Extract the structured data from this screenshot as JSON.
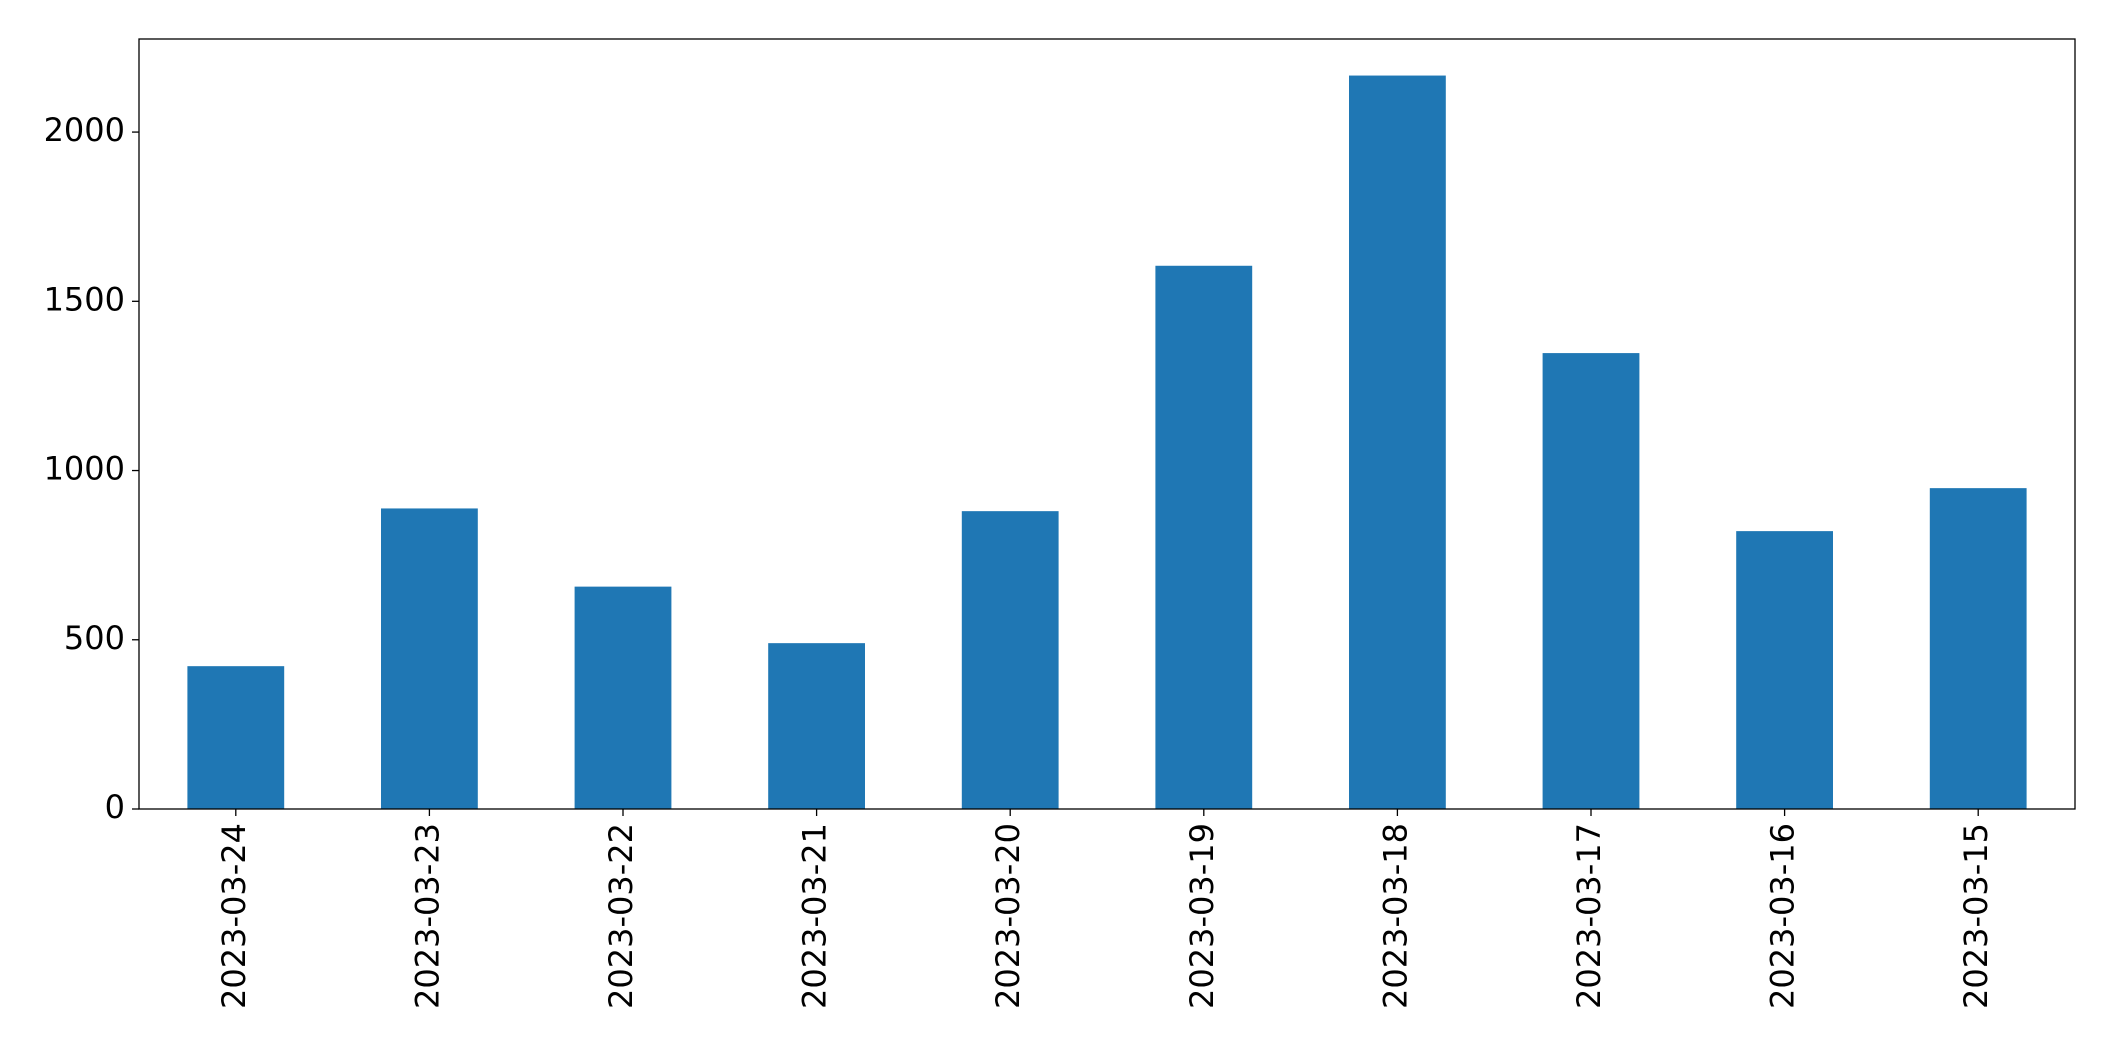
{
  "chart_data": {
    "type": "bar",
    "categories": [
      "2023-03-24",
      "2023-03-23",
      "2023-03-22",
      "2023-03-21",
      "2023-03-20",
      "2023-03-19",
      "2023-03-18",
      "2023-03-17",
      "2023-03-16",
      "2023-03-15"
    ],
    "values": [
      422,
      888,
      657,
      490,
      880,
      1605,
      2167,
      1347,
      821,
      948
    ],
    "color": "#1f77b4",
    "ylim": [
      0,
      2275
    ],
    "yticks": [
      0,
      500,
      1000,
      1500,
      2000
    ],
    "grid": false
  }
}
